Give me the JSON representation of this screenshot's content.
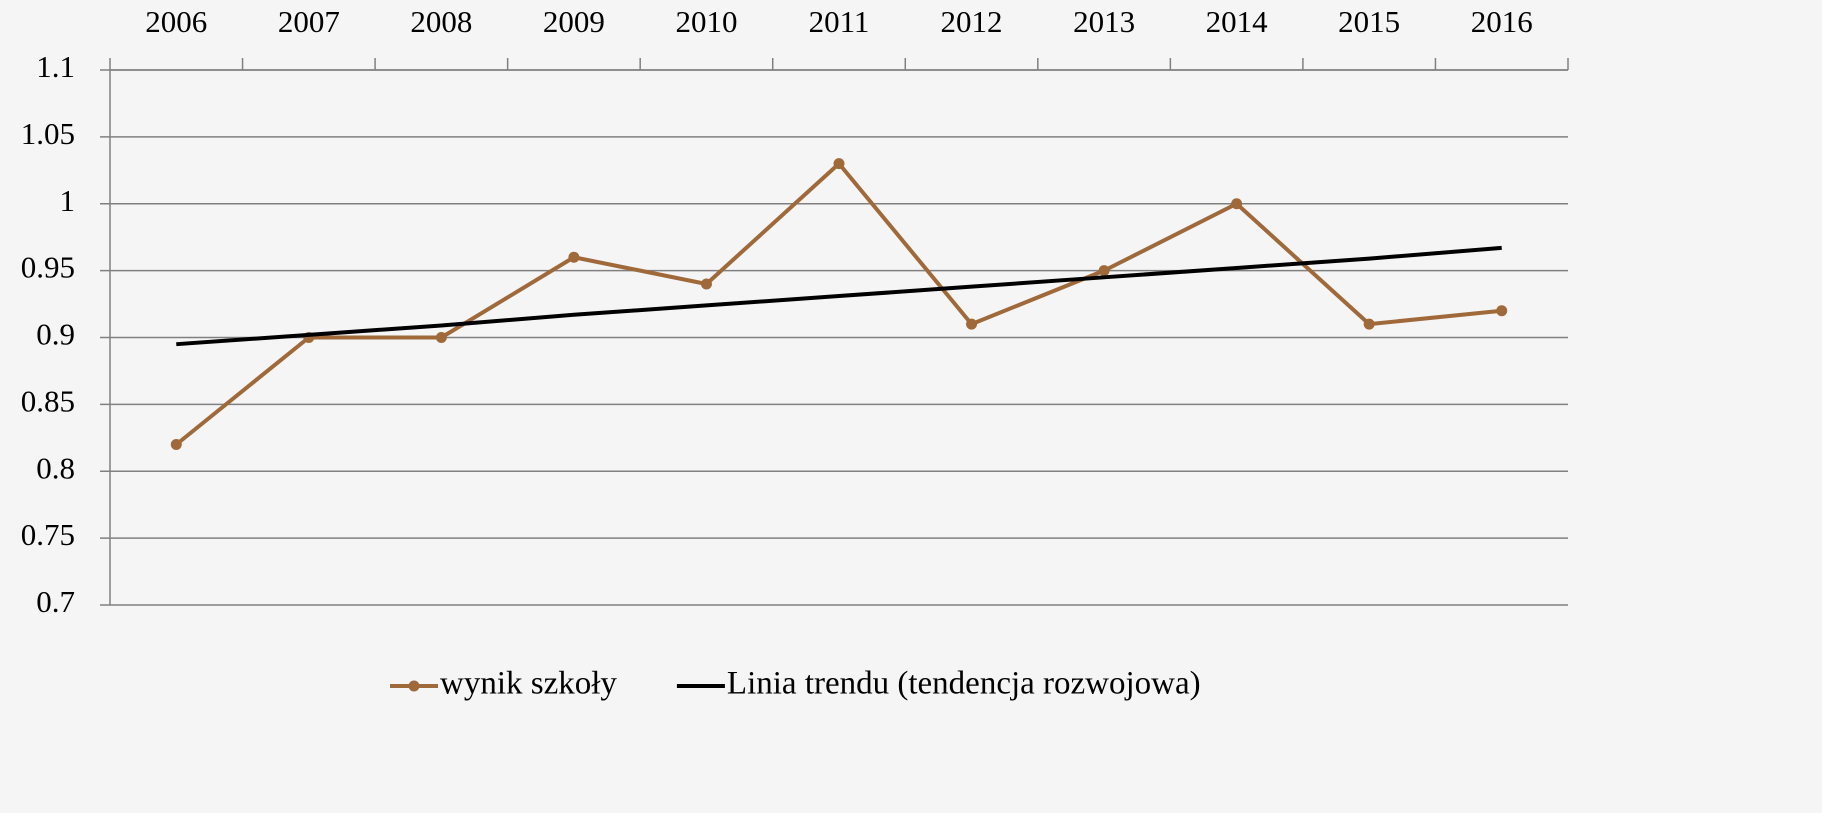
{
  "chart_data": {
    "type": "line",
    "categories": [
      "2006",
      "2007",
      "2008",
      "2009",
      "2010",
      "2011",
      "2012",
      "2013",
      "2014",
      "2015",
      "2016"
    ],
    "series": [
      {
        "name": "wynik szkoły",
        "color": "#a0693a",
        "markers": true,
        "values": [
          0.82,
          0.9,
          0.9,
          0.96,
          0.94,
          1.03,
          0.91,
          0.95,
          1.0,
          0.91,
          0.92
        ]
      },
      {
        "name": "Linia trendu (tendencja rozwojowa)",
        "color": "#000000",
        "markers": false,
        "values": [
          0.895,
          0.902,
          0.909,
          0.917,
          0.924,
          0.931,
          0.938,
          0.945,
          0.952,
          0.959,
          0.967
        ]
      }
    ],
    "ylim": [
      0.7,
      1.1
    ],
    "yticks": [
      0.7,
      0.75,
      0.8,
      0.85,
      0.9,
      0.95,
      1,
      1.05,
      1.1
    ],
    "grid": true,
    "legend": "bottom",
    "x_axis_position": "top"
  }
}
